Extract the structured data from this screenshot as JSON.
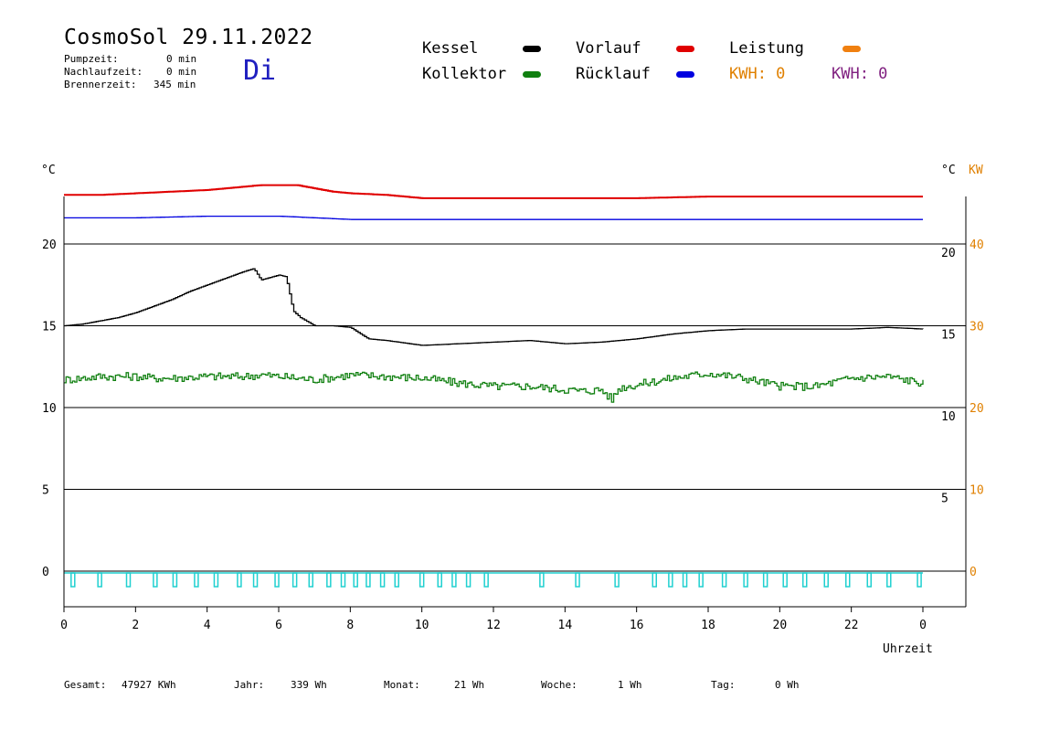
{
  "header": {
    "title": "CosmoSol 29.11.2022",
    "day": "Di",
    "pump_label": "Pumpzeit:",
    "pump_value": "0 min",
    "after_label": "Nachlaufzeit:",
    "after_value": "0 min",
    "burner_label": "Brennerzeit:",
    "burner_value": "345 min"
  },
  "legend": {
    "kessel": "Kessel",
    "vorlauf": "Vorlauf",
    "leistung": "Leistung",
    "kollektor": "Kollektor",
    "ruecklauf": "Rücklauf",
    "kwh1": "KWH: 0",
    "kwh2": "KWH: 0"
  },
  "colors": {
    "kessel": "#000000",
    "vorlauf": "#e00000",
    "leistung": "#f08010",
    "kollektor": "#108010",
    "ruecklauf": "#0000e0",
    "kwh1": "#e08000",
    "kwh2": "#802080",
    "pump": "#20d0d0"
  },
  "axes": {
    "left_unit": "°C",
    "right_unit": "°C",
    "right_unit2": "KW",
    "x_label": "Uhrzeit"
  },
  "footer": {
    "gesamt_label": "Gesamt:",
    "gesamt_value": "47927 KWh",
    "jahr_label": "Jahr:",
    "jahr_value": "339 Wh",
    "monat_label": "Monat:",
    "monat_value": "21 Wh",
    "woche_label": "Woche:",
    "woche_value": "1 Wh",
    "tag_label": "Tag:",
    "tag_value": "0 Wh"
  },
  "chart_data": {
    "type": "line",
    "x_ticks": [
      "0",
      "2",
      "4",
      "6",
      "8",
      "10",
      "12",
      "14",
      "16",
      "18",
      "20",
      "22",
      "0"
    ],
    "xlim": [
      0,
      24
    ],
    "y_left": {
      "ylim": [
        0,
        20
      ],
      "ticks": [
        "0",
        "5",
        "10",
        "15",
        "20"
      ]
    },
    "y_right_temp": {
      "ticks": [
        "5",
        "10",
        "15",
        "20"
      ]
    },
    "y_right_kw": {
      "ylim": [
        0,
        40
      ],
      "ticks": [
        "0",
        "10",
        "20",
        "30",
        "40"
      ]
    },
    "grid": "horizontal",
    "series": [
      {
        "name": "Kessel",
        "color": "#000000",
        "x": [
          0,
          0.5,
          1,
          1.5,
          2,
          2.5,
          3,
          3.5,
          4,
          4.5,
          5,
          5.3,
          5.5,
          6,
          6.2,
          6.4,
          6.6,
          7,
          7.5,
          8,
          8.5,
          9,
          10,
          11,
          12,
          13,
          14,
          15,
          16,
          17,
          18,
          19,
          20,
          21,
          22,
          23,
          24
        ],
        "values": [
          15.0,
          15.1,
          15.3,
          15.5,
          15.8,
          16.2,
          16.6,
          17.1,
          17.5,
          17.9,
          18.3,
          18.5,
          17.8,
          18.1,
          18.0,
          15.9,
          15.5,
          15.0,
          15.0,
          14.9,
          14.2,
          14.1,
          13.8,
          13.9,
          14.0,
          14.1,
          13.9,
          14.0,
          14.2,
          14.5,
          14.7,
          14.8,
          14.8,
          14.8,
          14.8,
          14.9,
          14.8
        ]
      },
      {
        "name": "Kollektor",
        "color": "#108010",
        "x": [
          0,
          1,
          2,
          2.5,
          3,
          4,
          5,
          5.5,
          6,
          7,
          8,
          9,
          10,
          11,
          12,
          13,
          14,
          14.5,
          15,
          15.3,
          15.5,
          16,
          17,
          18,
          19,
          20,
          21,
          22,
          23,
          24
        ],
        "values": [
          11.7,
          11.9,
          11.9,
          11.8,
          11.8,
          11.9,
          11.9,
          12.0,
          11.9,
          11.7,
          12.0,
          11.9,
          11.8,
          11.5,
          11.3,
          11.3,
          11.1,
          11.0,
          11.1,
          10.5,
          11.2,
          11.4,
          11.8,
          12.1,
          11.8,
          11.3,
          11.3,
          11.8,
          11.9,
          11.5
        ]
      },
      {
        "name": "Vorlauf",
        "color": "#e00000",
        "x": [
          0,
          1,
          2,
          3,
          4,
          5,
          5.5,
          6,
          6.5,
          7,
          7.5,
          8,
          9,
          10,
          12,
          14,
          16,
          18,
          20,
          22,
          24
        ],
        "values": [
          23.0,
          23.0,
          23.1,
          23.2,
          23.3,
          23.5,
          23.6,
          23.6,
          23.6,
          23.4,
          23.2,
          23.1,
          23.0,
          22.8,
          22.8,
          22.8,
          22.8,
          22.9,
          22.9,
          22.9,
          22.9
        ]
      },
      {
        "name": "Rücklauf",
        "color": "#0000e0",
        "x": [
          0,
          2,
          4,
          5,
          6,
          7,
          8,
          10,
          12,
          14,
          16,
          18,
          20,
          22,
          24
        ],
        "values": [
          21.6,
          21.6,
          21.7,
          21.7,
          21.7,
          21.6,
          21.5,
          21.5,
          21.5,
          21.5,
          21.5,
          21.5,
          21.5,
          21.5,
          21.5
        ]
      }
    ],
    "pump_cycles_hours": [
      0.25,
      1.0,
      1.8,
      2.55,
      3.1,
      3.7,
      4.25,
      4.9,
      5.35,
      5.95,
      6.45,
      6.9,
      7.4,
      7.8,
      8.15,
      8.5,
      8.9,
      9.3,
      10.0,
      10.5,
      10.9,
      11.3,
      11.8,
      13.35,
      14.35,
      15.45,
      16.5,
      16.95,
      17.35,
      17.8,
      18.45,
      19.05,
      19.6,
      20.15,
      20.7,
      21.3,
      21.9,
      22.5,
      23.05,
      23.9
    ]
  }
}
